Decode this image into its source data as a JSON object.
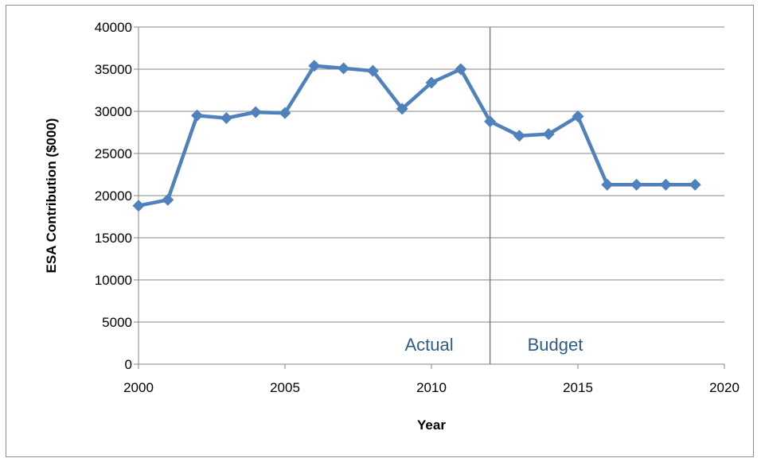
{
  "chart_data": {
    "type": "line",
    "title": "",
    "xlabel": "Year",
    "ylabel": "ESA Contribution ($000)",
    "xlim": [
      2000,
      2020
    ],
    "ylim": [
      0,
      40000
    ],
    "x_ticks": [
      2000,
      2005,
      2010,
      2015,
      2020
    ],
    "y_ticks": [
      0,
      5000,
      10000,
      15000,
      20000,
      25000,
      30000,
      35000,
      40000
    ],
    "grid": "horizontal",
    "legend": "none",
    "series": [
      {
        "color": "#4f81bd",
        "marker": "diamond",
        "x": [
          2000,
          2001,
          2002,
          2003,
          2004,
          2005,
          2006,
          2007,
          2008,
          2009,
          2010,
          2011,
          2012,
          2013,
          2014,
          2015,
          2016,
          2017,
          2018,
          2019
        ],
        "values": [
          18800,
          19500,
          29500,
          29200,
          29900,
          29800,
          35400,
          35100,
          34800,
          30300,
          33400,
          35000,
          28800,
          27100,
          27300,
          29400,
          21300,
          21300,
          21300,
          21300
        ]
      }
    ],
    "divider": {
      "x": 2012,
      "color": "#4a7aa8"
    },
    "annotations": [
      {
        "text": "Actual",
        "side": "left"
      },
      {
        "text": "Budget",
        "side": "right"
      }
    ]
  }
}
